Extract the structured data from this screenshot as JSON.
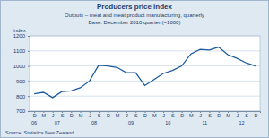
{
  "chart_data": {
    "type": "line",
    "title": "Producers price index",
    "subtitle": "Outputs – meat and meat product manufacturing, quarterly",
    "subtitle2": "Base: December 2010 quarter (=1000)",
    "y_label": "Index",
    "source": "Source: Statistics New Zealand",
    "categories": [
      "D",
      "M",
      "J",
      "S",
      "D",
      "M",
      "J",
      "S",
      "D",
      "M",
      "J",
      "S",
      "D",
      "M",
      "J",
      "S",
      "D",
      "M",
      "J",
      "S",
      "D",
      "M",
      "J",
      "S",
      "D"
    ],
    "x_groups": [
      "06",
      "07",
      "07",
      "07",
      "07",
      "08",
      "08",
      "08",
      "08",
      "09",
      "09",
      "09",
      "09",
      "10",
      "10",
      "10",
      "10",
      "11",
      "11",
      "11",
      "11",
      "12",
      "12",
      "12",
      "12"
    ],
    "values": [
      815,
      825,
      790,
      830,
      835,
      855,
      900,
      1005,
      1000,
      990,
      955,
      955,
      870,
      910,
      950,
      970,
      1000,
      1080,
      1110,
      1105,
      1125,
      1075,
      1050,
      1020,
      1000
    ],
    "color": "#1f5a9c",
    "ylim": [
      700,
      1200
    ],
    "yticks": [
      700,
      800,
      900,
      1000,
      1100,
      1200
    ],
    "grid": true
  }
}
